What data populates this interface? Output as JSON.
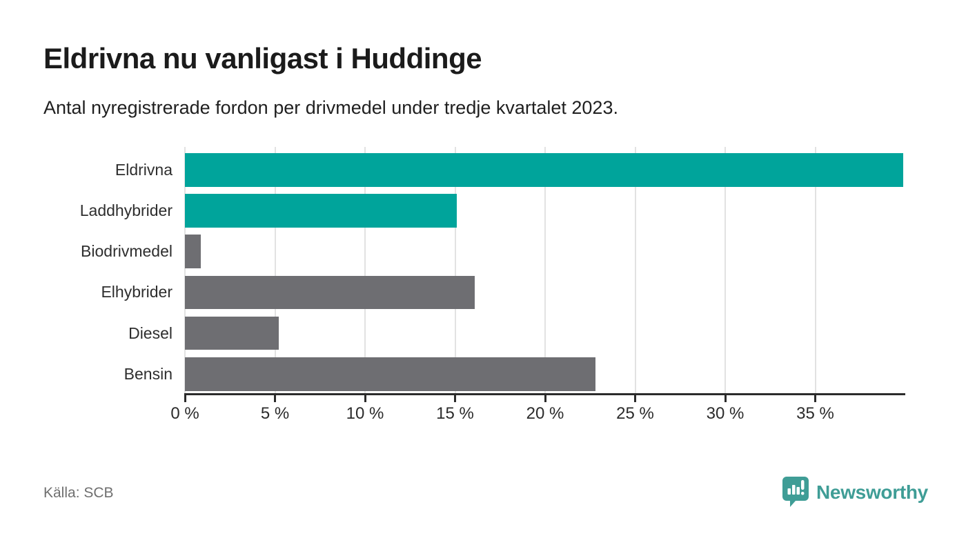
{
  "header": {
    "title": "Eldrivna nu vanligast i Huddinge",
    "subtitle": "Antal nyregistrerade fordon per drivmedel under tredje kvartalet 2023."
  },
  "chart_data": {
    "type": "bar",
    "orientation": "horizontal",
    "title": "Eldrivna nu vanligast i Huddinge",
    "subtitle": "Antal nyregistrerade fordon per drivmedel under tredje kvartalet 2023.",
    "categories": [
      "Eldrivna",
      "Laddhybrider",
      "Biodrivmedel",
      "Elhybrider",
      "Diesel",
      "Bensin"
    ],
    "values": [
      39.9,
      15.1,
      0.9,
      16.1,
      5.2,
      22.8
    ],
    "unit": "%",
    "xlim": [
      0,
      40
    ],
    "x_ticks": [
      0,
      5,
      10,
      15,
      20,
      25,
      30,
      35
    ],
    "x_tick_labels": [
      "0 %",
      "5 %",
      "10 %",
      "15 %",
      "20 %",
      "25 %",
      "30 %",
      "35 %"
    ],
    "grid": true,
    "legend": "none",
    "colors": [
      "#00a49b",
      "#00a49b",
      "#6e6e72",
      "#6e6e72",
      "#6e6e72",
      "#6e6e72"
    ]
  },
  "colors": {
    "accent_teal": "#00a49b",
    "neutral_gray": "#6e6e72",
    "brand_teal": "#3f9d96",
    "axis": "#2b2b2b",
    "gridline": "#e2e2e2"
  },
  "footer": {
    "source": "Källa: SCB",
    "brand": "Newsworthy",
    "brand_icon": "newsworthy-speech-bubble-bar-chart-icon"
  }
}
